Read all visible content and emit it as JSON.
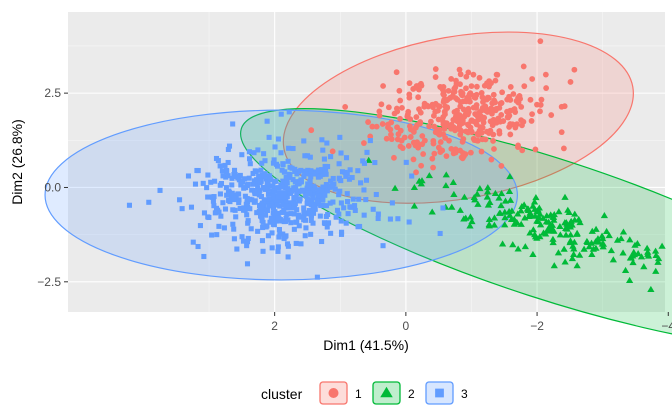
{
  "chart_data": {
    "type": "scatter",
    "title": "",
    "xlabel": "Dim1 (41.5%)",
    "ylabel": "Dim2 (26.8%)",
    "x_reversed": true,
    "xlim": [
      5.15,
      -3.95
    ],
    "ylim": [
      -3.3,
      4.65
    ],
    "x_ticks": [
      2,
      0,
      -2,
      -4
    ],
    "x_tick_labels": [
      "2",
      "0",
      "−2",
      "−4"
    ],
    "y_ticks": [
      -2.5,
      0.0,
      2.5
    ],
    "y_tick_labels": [
      "−2.5",
      "0.0",
      "2.5"
    ],
    "grid": true,
    "legend_position": "bottom",
    "legend_title": "cluster",
    "series": [
      {
        "name": "1",
        "shape": "circle",
        "color": "#F8766D",
        "center": [
          -0.8,
          1.85
        ],
        "ellipse": {
          "radius_x": 2.7,
          "radius_y": 2.15,
          "rotation_deg": -10
        },
        "spread": [
          0.65,
          0.58
        ],
        "n_points": 380
      },
      {
        "name": "2",
        "shape": "triangle",
        "color": "#00BA38",
        "center": [
          -2.2,
          -1.1
        ],
        "ellipse": {
          "radius_x": 4.95,
          "radius_y": 1.85,
          "rotation_deg": 18
        },
        "spread": [
          1.1,
          0.38
        ],
        "n_points": 210
      },
      {
        "name": "3",
        "shape": "square",
        "color": "#619CFF",
        "center": [
          1.9,
          -0.2
        ],
        "ellipse": {
          "radius_x": 3.6,
          "radius_y": 2.25,
          "rotation_deg": 0
        },
        "spread": [
          0.7,
          0.6
        ],
        "n_points": 560
      }
    ]
  }
}
